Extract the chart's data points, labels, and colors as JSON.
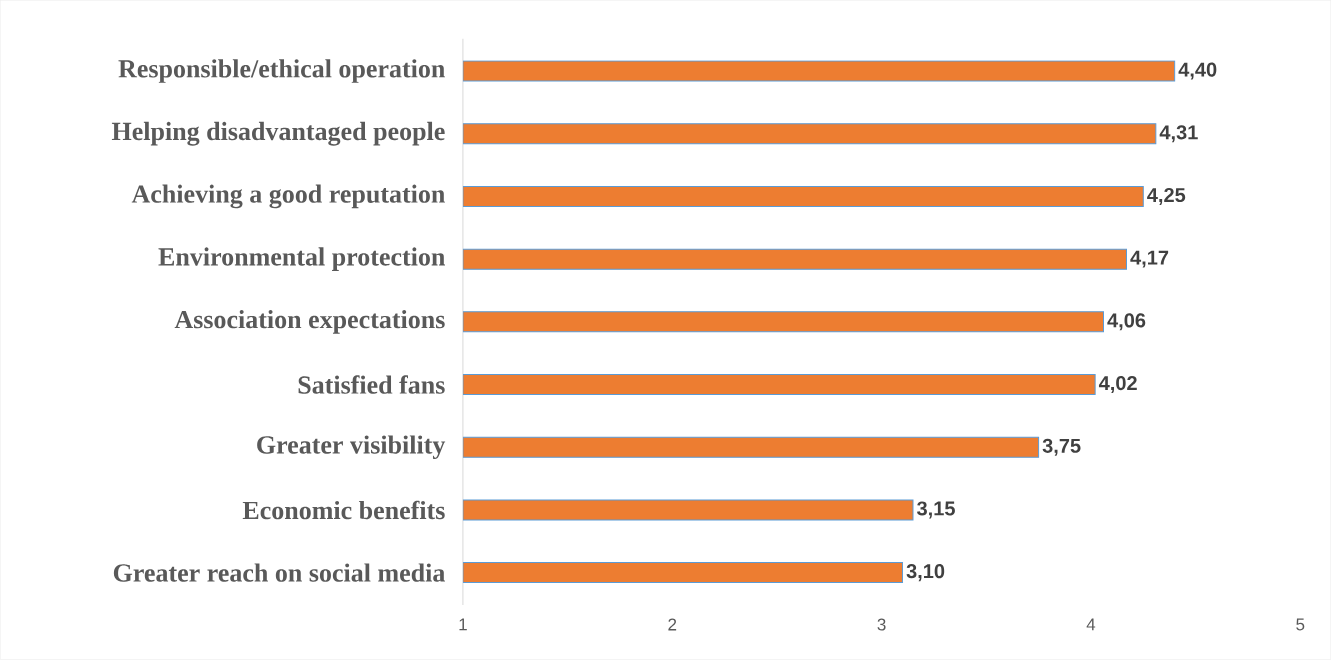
{
  "chart_data": {
    "type": "bar",
    "orientation": "horizontal",
    "categories": [
      "Responsible/ethical operation",
      "Helping disadvantaged people",
      "Achieving a good reputation",
      "Environmental protection",
      "Association expectations",
      "Satisfied fans",
      "Greater visibility",
      "Economic benefits",
      "Greater reach on social media"
    ],
    "values": [
      4.4,
      4.31,
      4.25,
      4.17,
      4.06,
      4.02,
      3.75,
      3.15,
      3.1
    ],
    "value_labels": [
      "4,40",
      "4,31",
      "4,25",
      "4,17",
      "4,06",
      "4,02",
      "3,75",
      "3,15",
      "3,10"
    ],
    "color": "#ed7d31",
    "xlim": [
      1,
      5
    ],
    "xticks": [
      1,
      2,
      3,
      4,
      5
    ],
    "grid": false
  }
}
